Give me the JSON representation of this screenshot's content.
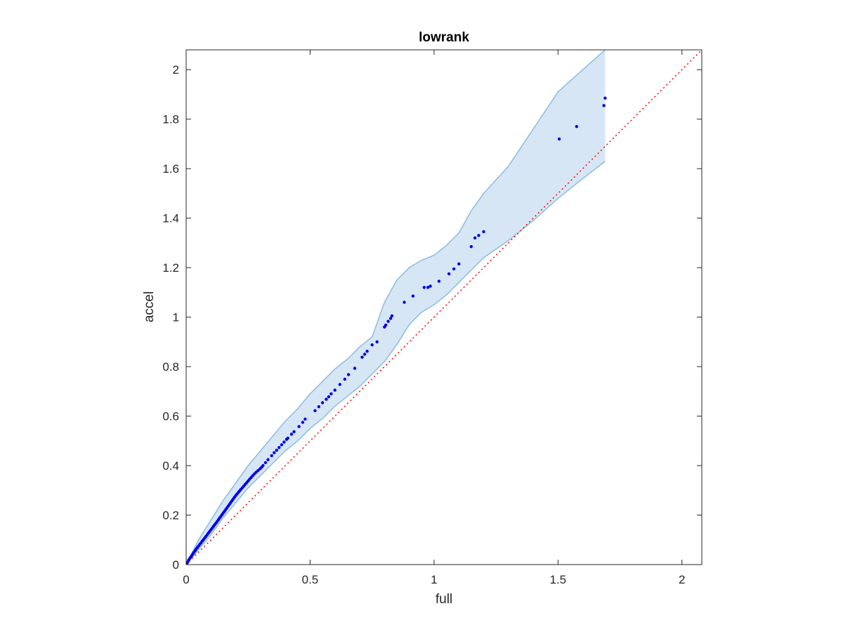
{
  "chart_data": {
    "type": "scatter",
    "title": "lowrank",
    "xlabel": "full",
    "ylabel": "accel",
    "xlim": [
      0,
      2.08
    ],
    "ylim": [
      0,
      2.08
    ],
    "xticks": [
      0,
      0.5,
      1,
      1.5,
      2
    ],
    "yticks": [
      0,
      0.2,
      0.4,
      0.6,
      0.8,
      1,
      1.2,
      1.4,
      1.6,
      1.8,
      2
    ],
    "xtick_labels": [
      "0",
      "0.5",
      "1",
      "1.5",
      "2"
    ],
    "ytick_labels": [
      "0",
      "0.2",
      "0.4",
      "0.6",
      "0.8",
      "1",
      "1.2",
      "1.4",
      "1.6",
      "1.8",
      "2"
    ],
    "grid": false,
    "legend": "none",
    "colors": {
      "points": "#0000ee",
      "band_fill": "#d6e6f4",
      "band_edge": "#89bde0",
      "reference": "#ff0000",
      "axes": "#262626"
    },
    "reference_line": {
      "style": "dotted",
      "slope": 1,
      "intercept": 0
    },
    "points": {
      "x": [
        0.003,
        0.006,
        0.01,
        0.014,
        0.018,
        0.022,
        0.027,
        0.031,
        0.036,
        0.04,
        0.045,
        0.05,
        0.055,
        0.06,
        0.065,
        0.07,
        0.075,
        0.08,
        0.085,
        0.09,
        0.095,
        0.1,
        0.105,
        0.11,
        0.115,
        0.12,
        0.125,
        0.13,
        0.135,
        0.14,
        0.145,
        0.15,
        0.155,
        0.16,
        0.165,
        0.17,
        0.175,
        0.18,
        0.185,
        0.19,
        0.195,
        0.2,
        0.205,
        0.21,
        0.215,
        0.22,
        0.226,
        0.232,
        0.238,
        0.244,
        0.25,
        0.256,
        0.262,
        0.268,
        0.275,
        0.282,
        0.29,
        0.298,
        0.305,
        0.31,
        0.32,
        0.33,
        0.345,
        0.355,
        0.365,
        0.375,
        0.385,
        0.395,
        0.405,
        0.41,
        0.425,
        0.435,
        0.455,
        0.47,
        0.48,
        0.52,
        0.535,
        0.55,
        0.565,
        0.575,
        0.585,
        0.6,
        0.62,
        0.64,
        0.655,
        0.68,
        0.71,
        0.72,
        0.73,
        0.75,
        0.77,
        0.8,
        0.805,
        0.815,
        0.825,
        0.83,
        0.88,
        0.915,
        0.96,
        0.975,
        0.985,
        1.02,
        1.06,
        1.08,
        1.1,
        1.15,
        1.165,
        1.18,
        1.2,
        1.505,
        1.575,
        1.685,
        1.69
      ],
      "y": [
        0.005,
        0.01,
        0.018,
        0.024,
        0.03,
        0.036,
        0.043,
        0.049,
        0.056,
        0.062,
        0.069,
        0.075,
        0.082,
        0.088,
        0.095,
        0.101,
        0.108,
        0.114,
        0.121,
        0.128,
        0.134,
        0.141,
        0.147,
        0.154,
        0.161,
        0.167,
        0.174,
        0.181,
        0.188,
        0.195,
        0.202,
        0.209,
        0.216,
        0.223,
        0.23,
        0.237,
        0.244,
        0.251,
        0.258,
        0.265,
        0.272,
        0.279,
        0.285,
        0.291,
        0.297,
        0.303,
        0.31,
        0.317,
        0.324,
        0.331,
        0.338,
        0.345,
        0.352,
        0.359,
        0.366,
        0.373,
        0.38,
        0.387,
        0.394,
        0.4,
        0.412,
        0.424,
        0.44,
        0.452,
        0.462,
        0.473,
        0.484,
        0.495,
        0.506,
        0.511,
        0.527,
        0.537,
        0.558,
        0.575,
        0.588,
        0.622,
        0.638,
        0.654,
        0.668,
        0.678,
        0.69,
        0.705,
        0.728,
        0.749,
        0.768,
        0.793,
        0.838,
        0.85,
        0.862,
        0.888,
        0.9,
        0.96,
        0.968,
        0.983,
        0.995,
        1.005,
        1.06,
        1.085,
        1.12,
        1.12,
        1.125,
        1.145,
        1.175,
        1.195,
        1.215,
        1.285,
        1.32,
        1.33,
        1.345,
        1.72,
        1.77,
        1.855,
        1.885
      ]
    },
    "band": {
      "x": [
        0,
        0.05,
        0.1,
        0.15,
        0.2,
        0.25,
        0.3,
        0.35,
        0.4,
        0.45,
        0.5,
        0.55,
        0.6,
        0.65,
        0.7,
        0.75,
        0.8,
        0.85,
        0.9,
        0.95,
        1.0,
        1.05,
        1.1,
        1.15,
        1.2,
        1.3,
        1.4,
        1.5,
        1.6,
        1.69
      ],
      "upper": [
        0,
        0.1,
        0.18,
        0.26,
        0.33,
        0.4,
        0.46,
        0.52,
        0.58,
        0.63,
        0.69,
        0.74,
        0.79,
        0.83,
        0.88,
        0.92,
        1.06,
        1.15,
        1.2,
        1.23,
        1.25,
        1.29,
        1.34,
        1.43,
        1.5,
        1.61,
        1.76,
        1.91,
        2.0,
        2.08
      ],
      "lower": [
        0,
        0.06,
        0.12,
        0.19,
        0.25,
        0.31,
        0.36,
        0.41,
        0.46,
        0.5,
        0.55,
        0.59,
        0.64,
        0.68,
        0.72,
        0.77,
        0.82,
        0.89,
        0.97,
        1.02,
        1.05,
        1.09,
        1.14,
        1.19,
        1.24,
        1.31,
        1.39,
        1.48,
        1.56,
        1.63
      ]
    }
  }
}
